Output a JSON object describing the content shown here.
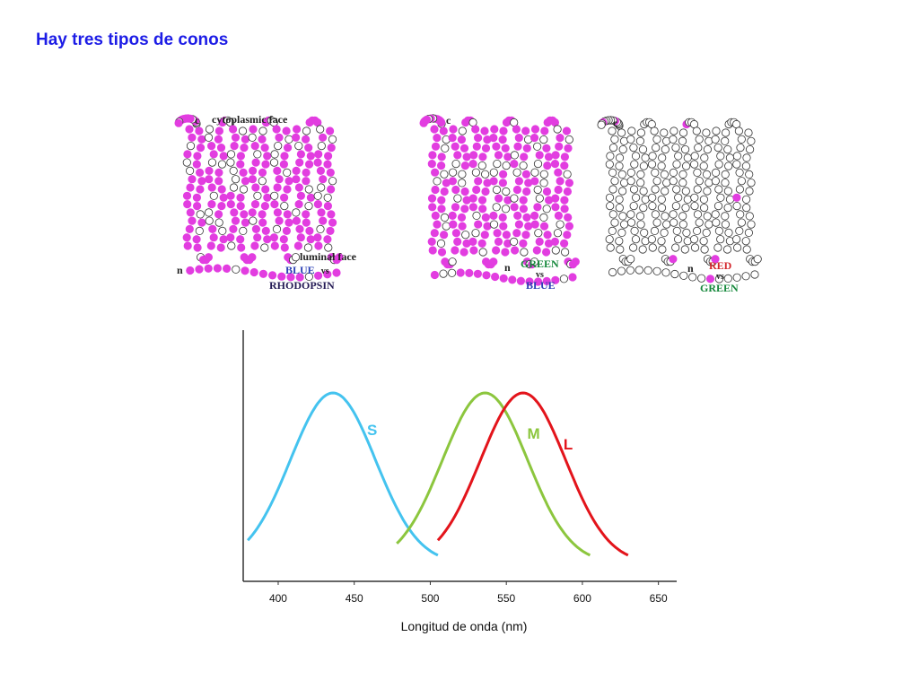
{
  "title": "Hay tres tipos de conos",
  "colors": {
    "title": "#1c1ce6",
    "highlight_bead": "#e23de0",
    "plain_bead": "#ffffff",
    "curve_s": "#44c3ef",
    "curve_m": "#8cc63e",
    "curve_l": "#e3141b"
  },
  "diagrams": [
    {
      "c_label": "c",
      "n_label": "n",
      "top_label": "cytoplasmic face",
      "bottom_label": "luminal face",
      "comparison": {
        "first": "BLUE",
        "vs": "vs",
        "second": "RHODOPSIN",
        "first_color": "#2a3fb5",
        "second_color": "#241a55"
      },
      "highlight_level": "high"
    },
    {
      "c_label": "c",
      "n_label": "n",
      "comparison": {
        "first": "GREEN",
        "vs": "vs",
        "second": "BLUE",
        "first_color": "#15883b",
        "second_color": "#2a3fb5"
      },
      "highlight_level": "high"
    },
    {
      "c_label": "c",
      "n_label": "n",
      "comparison": {
        "first": "RED",
        "vs": "vs",
        "second": "GREEN",
        "first_color": "#d4262b",
        "second_color": "#15883b"
      },
      "highlight_level": "low"
    }
  ],
  "chart_data": {
    "type": "line",
    "xlabel": "Longitud de onda (nm)",
    "ylabel": "",
    "x_ticks": [
      400,
      450,
      500,
      550,
      600,
      650
    ],
    "xlim": [
      377,
      662
    ],
    "y_axis_ticks_shown": false,
    "grid": false,
    "series": [
      {
        "name": "S",
        "color": "#44c3ef",
        "peak": 436,
        "start": 380,
        "end": 505
      },
      {
        "name": "M",
        "color": "#8cc63e",
        "peak": 536,
        "start": 478,
        "end": 605
      },
      {
        "name": "L",
        "color": "#e3141b",
        "peak": 561,
        "start": 505,
        "end": 630
      }
    ]
  }
}
